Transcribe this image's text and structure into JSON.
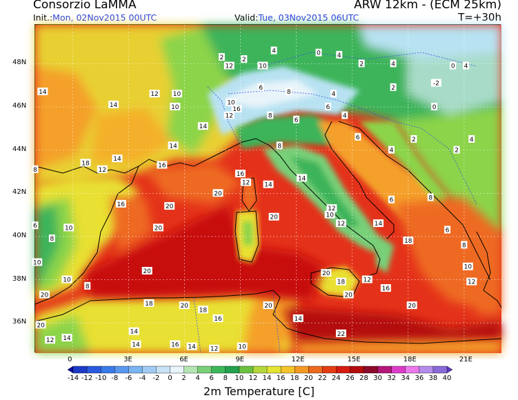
{
  "header": {
    "organization": "Consorzio LaMMA",
    "model": "ARW 12km - (ECM 25km)",
    "init_label": "Init.:",
    "init_value": "Mon, 02Nov2015 00UTC",
    "valid_label": "Valid:",
    "valid_value": "Tue, 03Nov2015 06UTC",
    "lead_time": "T=+30h"
  },
  "latitude_labels": [
    "48N",
    "46N",
    "44N",
    "42N",
    "40N",
    "38N",
    "36N"
  ],
  "longitude_labels": [
    "0",
    "3E",
    "6E",
    "9E",
    "12E",
    "15E",
    "18E",
    "21E"
  ],
  "colorbar": {
    "title": "2m Temperature [C]",
    "levels": [
      "-14",
      "-12",
      "-10",
      "-8",
      "-6",
      "-4",
      "-2",
      "0",
      "2",
      "4",
      "6",
      "8",
      "10",
      "12",
      "14",
      "16",
      "18",
      "20",
      "22",
      "24",
      "26",
      "28",
      "30",
      "32",
      "34",
      "36",
      "38",
      "40"
    ],
    "colors": [
      "#0a0aa0",
      "#1c3cc8",
      "#2a5ae0",
      "#3a7ae8",
      "#5a98ee",
      "#7ab4f2",
      "#a0ccf4",
      "#c8e2f6",
      "#e8f4fa",
      "#b4e6b4",
      "#78d078",
      "#3cb85a",
      "#24a04e",
      "#6cc040",
      "#b4d83c",
      "#e4e432",
      "#f4c42a",
      "#f49a24",
      "#ec6a1c",
      "#e43c14",
      "#d41c10",
      "#b40c0c",
      "#8c0a2a",
      "#b4167a",
      "#dc3cc8",
      "#ec78ec",
      "#b48cec",
      "#8a6ad8",
      "#5a3cc0"
    ]
  },
  "map": {
    "colors": {
      "sea_warm": "#e4321a",
      "sea_hot": "#c8100e",
      "sea_mid": "#ee6a22",
      "land_warm": "#f4a02a",
      "land_mild": "#e8e030",
      "land_cool": "#8cd44a",
      "land_green": "#3cb45a",
      "alps": "#b8e2f2",
      "alps_snow": "#e8f4fa"
    },
    "temperature_labels": [
      {
        "v": "12",
        "x": 8.4,
        "y": 47.9
      },
      {
        "v": "10",
        "x": 10.2,
        "y": 47.9
      },
      {
        "v": "14",
        "x": -1.6,
        "y": 46.7
      },
      {
        "v": "12",
        "x": 4.4,
        "y": 46.6
      },
      {
        "v": "10",
        "x": 5.6,
        "y": 46.6
      },
      {
        "v": "14",
        "x": 2.2,
        "y": 46.1
      },
      {
        "v": "10",
        "x": 8.5,
        "y": 46.2
      },
      {
        "v": "16",
        "x": 8.8,
        "y": 45.9
      },
      {
        "v": "10",
        "x": 5.5,
        "y": 46.0
      },
      {
        "v": "14",
        "x": 7.0,
        "y": 45.1
      },
      {
        "v": "12",
        "x": 8.4,
        "y": 45.6
      },
      {
        "v": "14",
        "x": 5.4,
        "y": 44.2
      },
      {
        "v": "16",
        "x": 4.8,
        "y": 43.3
      },
      {
        "v": "14",
        "x": 2.4,
        "y": 43.6
      },
      {
        "v": "18",
        "x": 0.7,
        "y": 43.4
      },
      {
        "v": "12",
        "x": 1.6,
        "y": 43.1
      },
      {
        "v": "16",
        "x": 9.0,
        "y": 42.9
      },
      {
        "v": "12",
        "x": 9.3,
        "y": 42.5
      },
      {
        "v": "14",
        "x": 10.5,
        "y": 42.4
      },
      {
        "v": "14",
        "x": 12.3,
        "y": 42.7
      },
      {
        "v": "20",
        "x": 7.8,
        "y": 42.0
      },
      {
        "v": "20",
        "x": 5.2,
        "y": 41.4
      },
      {
        "v": "16",
        "x": 2.6,
        "y": 41.5
      },
      {
        "v": "20",
        "x": 10.8,
        "y": 40.9
      },
      {
        "v": "20",
        "x": 4.6,
        "y": 40.4
      },
      {
        "v": "12",
        "x": 13.9,
        "y": 41.3
      },
      {
        "v": "10",
        "x": 13.8,
        "y": 41.0
      },
      {
        "v": "12",
        "x": 14.4,
        "y": 40.6
      },
      {
        "v": "14",
        "x": 16.4,
        "y": 40.6
      },
      {
        "v": "18",
        "x": 18.0,
        "y": 39.8
      },
      {
        "v": "20",
        "x": 4.0,
        "y": 38.4
      },
      {
        "v": "20",
        "x": 13.6,
        "y": 38.3
      },
      {
        "v": "18",
        "x": 14.4,
        "y": 37.9
      },
      {
        "v": "12",
        "x": 15.8,
        "y": 38.0
      },
      {
        "v": "16",
        "x": 16.8,
        "y": 37.6
      },
      {
        "v": "20",
        "x": -1.5,
        "y": 37.3
      },
      {
        "v": "20",
        "x": 14.8,
        "y": 37.3
      },
      {
        "v": "20",
        "x": 18.2,
        "y": 36.8
      },
      {
        "v": "18",
        "x": 4.1,
        "y": 36.9
      },
      {
        "v": "20",
        "x": 6.0,
        "y": 36.8
      },
      {
        "v": "18",
        "x": 7.0,
        "y": 36.6
      },
      {
        "v": "16",
        "x": 7.8,
        "y": 36.2
      },
      {
        "v": "20",
        "x": 10.5,
        "y": 36.8
      },
      {
        "v": "14",
        "x": 12.1,
        "y": 36.2
      },
      {
        "v": "14",
        "x": 3.3,
        "y": 35.6
      },
      {
        "v": "20",
        "x": -1.7,
        "y": 35.9
      },
      {
        "v": "22",
        "x": 14.4,
        "y": 35.5
      },
      {
        "v": "14",
        "x": -0.3,
        "y": 35.3
      },
      {
        "v": "12",
        "x": -1.2,
        "y": 35.2
      },
      {
        "v": "14",
        "x": 3.4,
        "y": 35.0
      },
      {
        "v": "16",
        "x": 5.5,
        "y": 35.0
      },
      {
        "v": "14",
        "x": 6.4,
        "y": 34.9
      },
      {
        "v": "12",
        "x": 7.6,
        "y": 34.8
      },
      {
        "v": "10",
        "x": 9.1,
        "y": 34.9
      },
      {
        "v": "2",
        "x": 8.0,
        "y": 48.3
      },
      {
        "v": "2",
        "x": 9.2,
        "y": 48.2
      },
      {
        "v": "4",
        "x": 10.8,
        "y": 48.6
      },
      {
        "v": "0",
        "x": 13.2,
        "y": 48.5
      },
      {
        "v": "4",
        "x": 14.3,
        "y": 48.4
      },
      {
        "v": "2",
        "x": 15.5,
        "y": 48.0
      },
      {
        "v": "4",
        "x": 17.2,
        "y": 48.0
      },
      {
        "v": "0",
        "x": 20.4,
        "y": 47.9
      },
      {
        "v": "4",
        "x": 21.1,
        "y": 47.9
      },
      {
        "v": "-2",
        "x": 19.5,
        "y": 47.1
      },
      {
        "v": "0",
        "x": 19.4,
        "y": 46.0
      },
      {
        "v": "2",
        "x": 17.2,
        "y": 46.9
      },
      {
        "v": "4",
        "x": 14.0,
        "y": 46.6
      },
      {
        "v": "4",
        "x": 14.6,
        "y": 45.6
      },
      {
        "v": "6",
        "x": 15.3,
        "y": 44.6
      },
      {
        "v": "4",
        "x": 17.1,
        "y": 44.0
      },
      {
        "v": "2",
        "x": 18.3,
        "y": 44.5
      },
      {
        "v": "4",
        "x": 21.4,
        "y": 44.5
      },
      {
        "v": "2",
        "x": 20.6,
        "y": 44.0
      },
      {
        "v": "6",
        "x": 10.1,
        "y": 46.9
      },
      {
        "v": "8",
        "x": 11.6,
        "y": 46.7
      },
      {
        "v": "6",
        "x": 13.7,
        "y": 46.0
      },
      {
        "v": "8",
        "x": 10.6,
        "y": 45.6
      },
      {
        "v": "6",
        "x": 12.0,
        "y": 45.4
      },
      {
        "v": "8",
        "x": 11.1,
        "y": 44.2
      },
      {
        "v": "6",
        "x": 17.1,
        "y": 41.7
      },
      {
        "v": "8",
        "x": 19.2,
        "y": 41.8
      },
      {
        "v": "8",
        "x": -2.0,
        "y": 43.1
      },
      {
        "v": "6",
        "x": -2.0,
        "y": 40.5
      },
      {
        "v": "8",
        "x": -1.1,
        "y": 39.9
      },
      {
        "v": "10",
        "x": -1.9,
        "y": 38.8
      },
      {
        "v": "10",
        "x": -0.3,
        "y": 38.0
      },
      {
        "v": "8",
        "x": 0.8,
        "y": 37.7
      },
      {
        "v": "10",
        "x": -0.2,
        "y": 40.4
      },
      {
        "v": "6",
        "x": 20.1,
        "y": 40.3
      },
      {
        "v": "8",
        "x": 21.0,
        "y": 39.6
      },
      {
        "v": "10",
        "x": 21.2,
        "y": 38.6
      },
      {
        "v": "12",
        "x": 21.4,
        "y": 37.9
      }
    ]
  }
}
